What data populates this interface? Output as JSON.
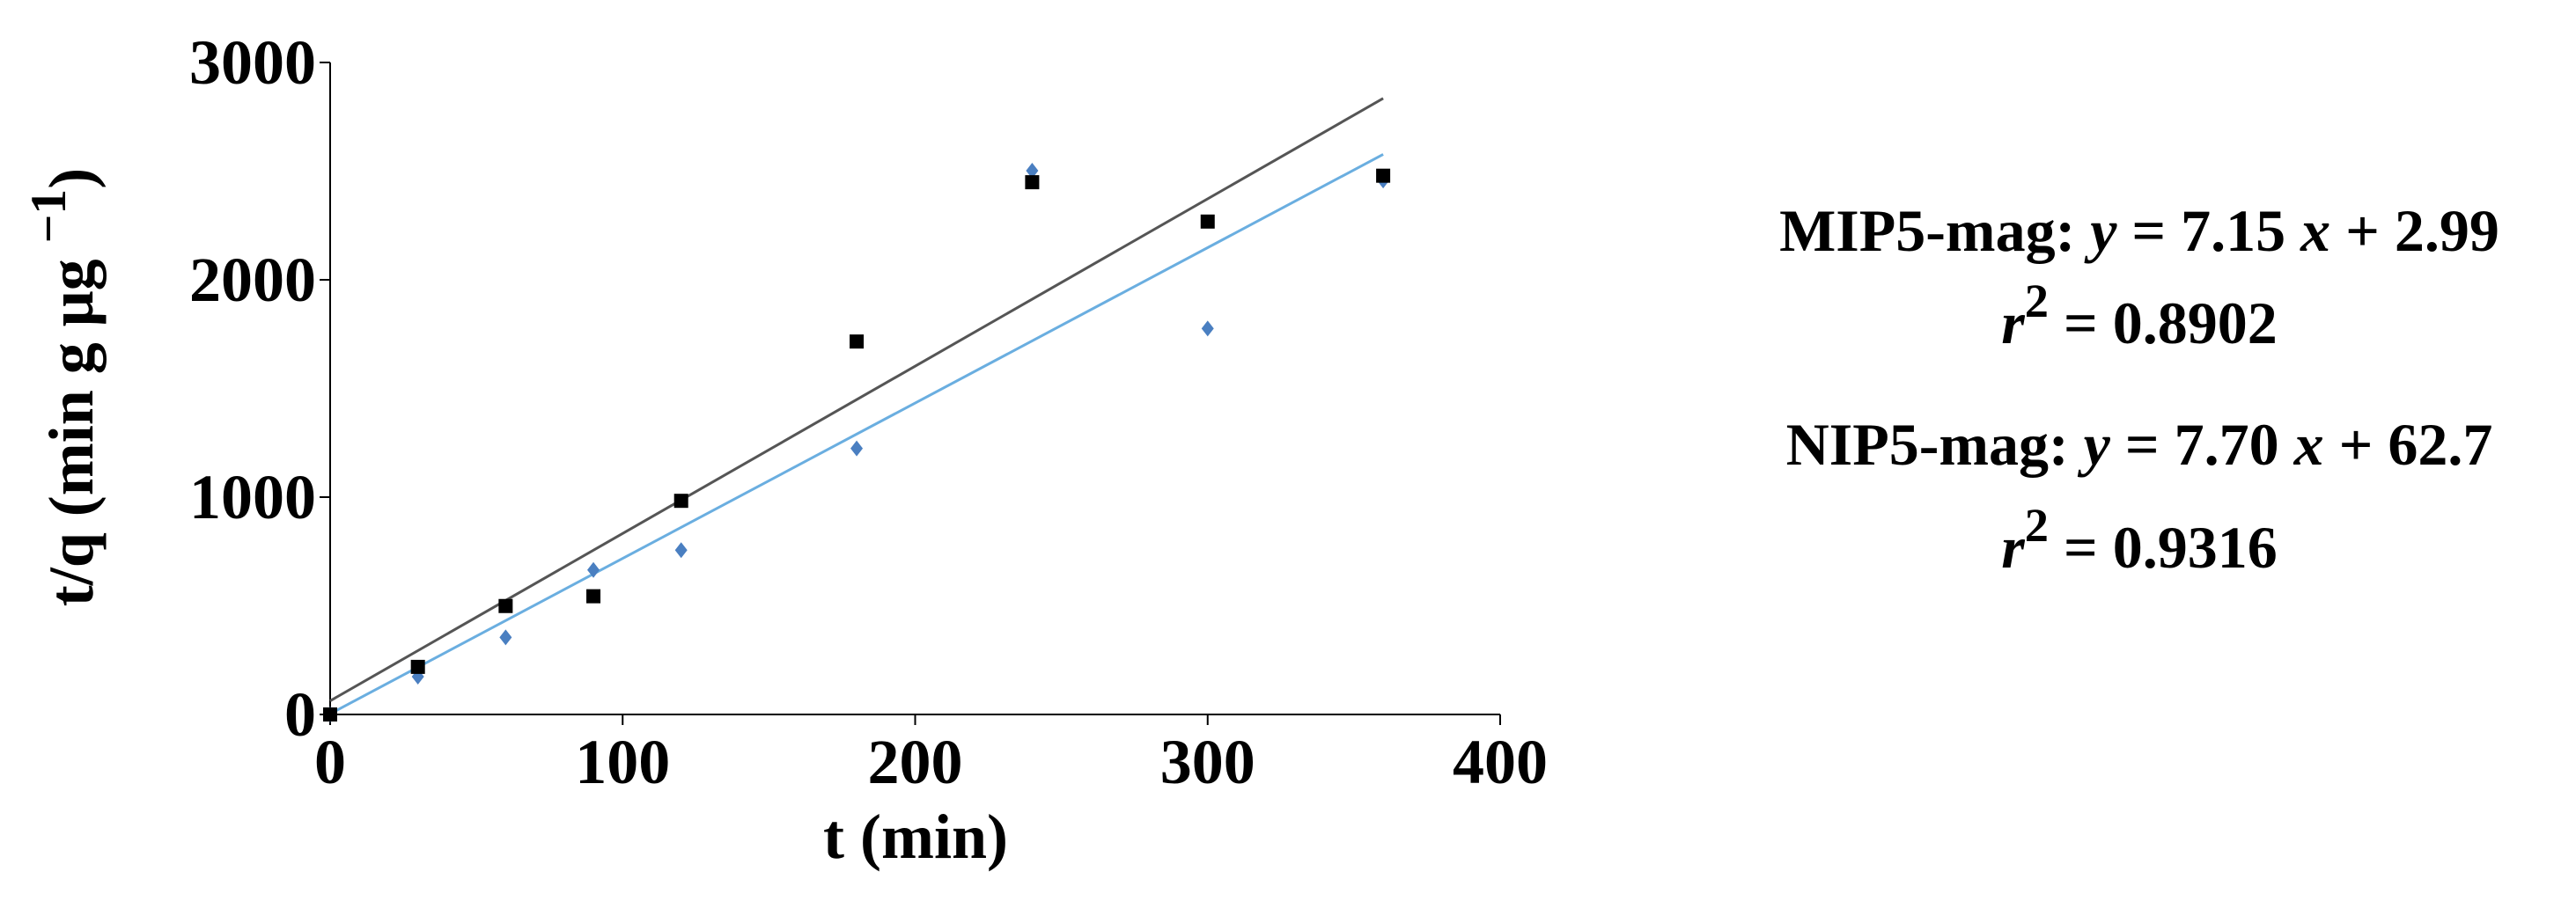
{
  "chart_data": {
    "type": "scatter",
    "x_label": "t (min)",
    "y_label": [
      {
        "text": "t/q  (min g μg "
      },
      {
        "text": "−1",
        "sup": true
      },
      {
        "text": ")"
      }
    ],
    "xlim": [
      0,
      400
    ],
    "xticks": [
      0,
      100,
      200,
      300,
      400
    ],
    "ylim": [
      0,
      3000
    ],
    "yticks": [
      0,
      1000,
      2000,
      3000
    ],
    "series": [
      {
        "name": "MIP5-mag",
        "color": "#4a7fc1",
        "marker": "diamond",
        "line_color": "#6aaee0",
        "fit": {
          "slope": 7.15,
          "intercept": 2.99
        },
        "x": [
          0,
          30,
          60,
          90,
          120,
          180,
          240,
          300,
          360
        ],
        "values": [
          0,
          174,
          355,
          665,
          756,
          1224,
          2502,
          1776,
          2457
        ]
      },
      {
        "name": "NIP5-mag",
        "color": "#000000",
        "marker": "square",
        "line_color": "#555555",
        "fit": {
          "slope": 7.7,
          "intercept": 62.7
        },
        "x": [
          0,
          30,
          60,
          90,
          120,
          180,
          240,
          300,
          360
        ],
        "values": [
          0,
          219,
          499,
          544,
          983,
          1716,
          2449,
          2268,
          2479
        ]
      }
    ],
    "annotations": [
      [
        {
          "text": "MIP5-mag: "
        },
        {
          "text": "y",
          "italic": true
        },
        {
          "text": " = 7.15 "
        },
        {
          "text": "x",
          "italic": true
        },
        {
          "text": " + 2.99"
        }
      ],
      [
        {
          "text": "r",
          "italic": true
        },
        {
          "text": "2",
          "sup": true
        },
        {
          "text": " =  0.8902"
        }
      ],
      [
        {
          "text": "NIP5-mag: "
        },
        {
          "text": "y",
          "italic": true
        },
        {
          "text": " = 7.70 "
        },
        {
          "text": "x",
          "italic": true
        },
        {
          "text": " + 62.7"
        }
      ],
      [
        {
          "text": "r",
          "italic": true
        },
        {
          "text": "2",
          "sup": true
        },
        {
          "text": " =  0.9316"
        }
      ]
    ]
  }
}
